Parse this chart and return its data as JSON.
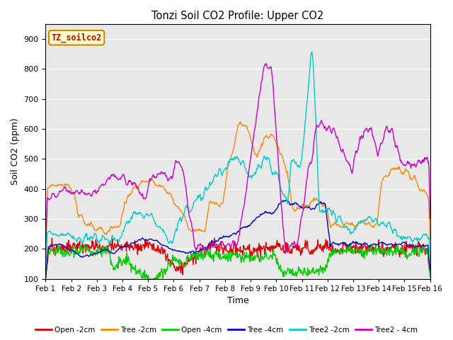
{
  "title": "Tonzi Soil CO2 Profile: Upper CO2",
  "xlabel": "Time",
  "ylabel": "Soil CO2 (ppm)",
  "ylim": [
    100,
    950
  ],
  "yticks": [
    100,
    200,
    300,
    400,
    500,
    600,
    700,
    800,
    900
  ],
  "xlim": [
    0,
    15
  ],
  "xtick_labels": [
    "Feb 1",
    "Feb 2",
    "Feb 3",
    "Feb 4",
    "Feb 5",
    "Feb 6",
    "Feb 7",
    "Feb 8",
    "Feb 9",
    "Feb 10",
    "Feb 11",
    "Feb 12",
    "Feb 13",
    "Feb 14",
    "Feb 15",
    "Feb 16"
  ],
  "label_box": "TZ_soilco2",
  "label_box_color": "#ffffcc",
  "label_box_border": "#cc8800",
  "label_box_text_color": "#cc0000",
  "plot_bg_color": "#e8e8e8",
  "series_colors": {
    "Open -2cm": "#dd0000",
    "Tree -2cm": "#ff8800",
    "Open -4cm": "#00cc00",
    "Tree -4cm": "#0000cc",
    "Tree2 -2cm": "#00cccc",
    "Tree2 - 4cm": "#cc00cc"
  },
  "linewidth": 1.0
}
